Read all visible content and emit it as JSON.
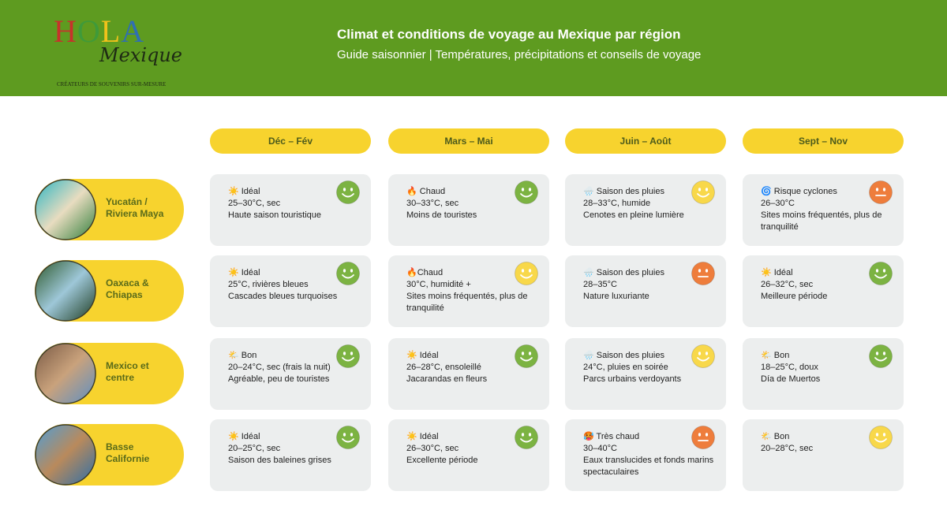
{
  "header": {
    "logo": {
      "letters": [
        {
          "text": "H",
          "color": "#c8312b"
        },
        {
          "text": "O",
          "color": "#3f9a3a"
        },
        {
          "text": "L",
          "color": "#f2c21b"
        },
        {
          "text": "A",
          "color": "#2f6fb3"
        }
      ],
      "script": "Mexique",
      "tagline": "CRÉATEURS DE SOUVENIRS SUR-MESURE"
    },
    "title": "Climat et conditions de voyage au Mexique par région",
    "subtitle": "Guide saisonnier | Températures, précipitations et conseils de voyage"
  },
  "table": {
    "seasons": [
      "Déc – Fév",
      "Mars – Mai",
      "Juin – Août",
      "Sept – Nov"
    ],
    "rows": [
      {
        "region": [
          "Yucatán /",
          "Riviera Maya"
        ],
        "cells": [
          {
            "status": "☀️ Idéal",
            "lines": [
              "25–30°C, sec",
              "Haute saison touristique"
            ],
            "smiley": {
              "color": "#7cb342",
              "face": "smile"
            }
          },
          {
            "status": "🔥 Chaud",
            "lines": [
              "30–33°C, sec",
              "Moins de touristes"
            ],
            "smiley": {
              "color": "#7cb342",
              "face": "smile"
            }
          },
          {
            "status": "🌧️ Saison des pluies",
            "lines": [
              "28–33°C, humide",
              "Cenotes en pleine lumière"
            ],
            "smiley": {
              "color": "#f8d84a",
              "face": "smile"
            }
          },
          {
            "status": "🌀 Risque cyclones",
            "lines": [
              "26–30°C",
              "Sites moins fréquentés, plus de tranquilité"
            ],
            "smiley": {
              "color": "#ee7d3c",
              "face": "neutral"
            }
          }
        ]
      },
      {
        "region": [
          "Oaxaca &",
          "Chiapas"
        ],
        "cells": [
          {
            "status": "☀️ Idéal",
            "lines": [
              " 25°C, rivières bleues",
              "Cascades bleues turquoises"
            ],
            "smiley": {
              "color": "#7cb342",
              "face": "smile"
            }
          },
          {
            "status": "🔥Chaud",
            "lines": [
              " 30°C, humidité +",
              "Sites moins fréquentés, plus de tranquilité"
            ],
            "smiley": {
              "color": "#f8d84a",
              "face": "smile"
            }
          },
          {
            "status": "🌧️ Saison des pluies",
            "lines": [
              "28–35°C",
              "Nature luxuriante"
            ],
            "smiley": {
              "color": "#ee7d3c",
              "face": "neutral"
            }
          },
          {
            "status": "☀️ Idéal",
            "lines": [
              "26–32°C, sec",
              "Meilleure période"
            ],
            "smiley": {
              "color": "#7cb342",
              "face": "smile"
            }
          }
        ]
      },
      {
        "region": [
          "Mexico et",
          "centre"
        ],
        "cells": [
          {
            "status": "🌤️ Bon",
            "lines": [
              "20–24°C, sec (frais la nuit)",
              "Agréable, peu de touristes"
            ],
            "smiley": {
              "color": "#7cb342",
              "face": "smile"
            }
          },
          {
            "status": "☀️ Idéal",
            "lines": [
              "26–28°C, ensoleillé",
              "Jacarandas en fleurs"
            ],
            "smiley": {
              "color": "#7cb342",
              "face": "smile"
            }
          },
          {
            "status": "🌧️ Saison des pluies",
            "lines": [
              "24°C, pluies en soirée",
              "Parcs urbains verdoyants"
            ],
            "smiley": {
              "color": "#f8d84a",
              "face": "smile"
            }
          },
          {
            "status": "🌤️ Bon",
            "lines": [
              "18–25°C, doux",
              "Día de Muertos"
            ],
            "smiley": {
              "color": "#7cb342",
              "face": "smile"
            }
          }
        ]
      },
      {
        "region": [
          "Basse",
          "Californie"
        ],
        "cells": [
          {
            "status": "☀️ Idéal",
            "lines": [
              "20–25°C, sec",
              "Saison des baleines grises"
            ],
            "smiley": {
              "color": "#7cb342",
              "face": "smile"
            }
          },
          {
            "status": "☀️ Idéal",
            "lines": [
              "26–30°C, sec",
              "Excellente période"
            ],
            "smiley": {
              "color": "#7cb342",
              "face": "smile"
            }
          },
          {
            "status": "🥵 Très chaud",
            "lines": [
              "30–40°C",
              "Eaux translucides et fonds marins spectaculaires"
            ],
            "smiley": {
              "color": "#ee7d3c",
              "face": "neutral"
            }
          },
          {
            "status": "🌤️ Bon",
            "lines": [
              "20–28°C, sec"
            ],
            "smiley": {
              "color": "#f8d84a",
              "face": "smile"
            }
          }
        ]
      }
    ]
  }
}
